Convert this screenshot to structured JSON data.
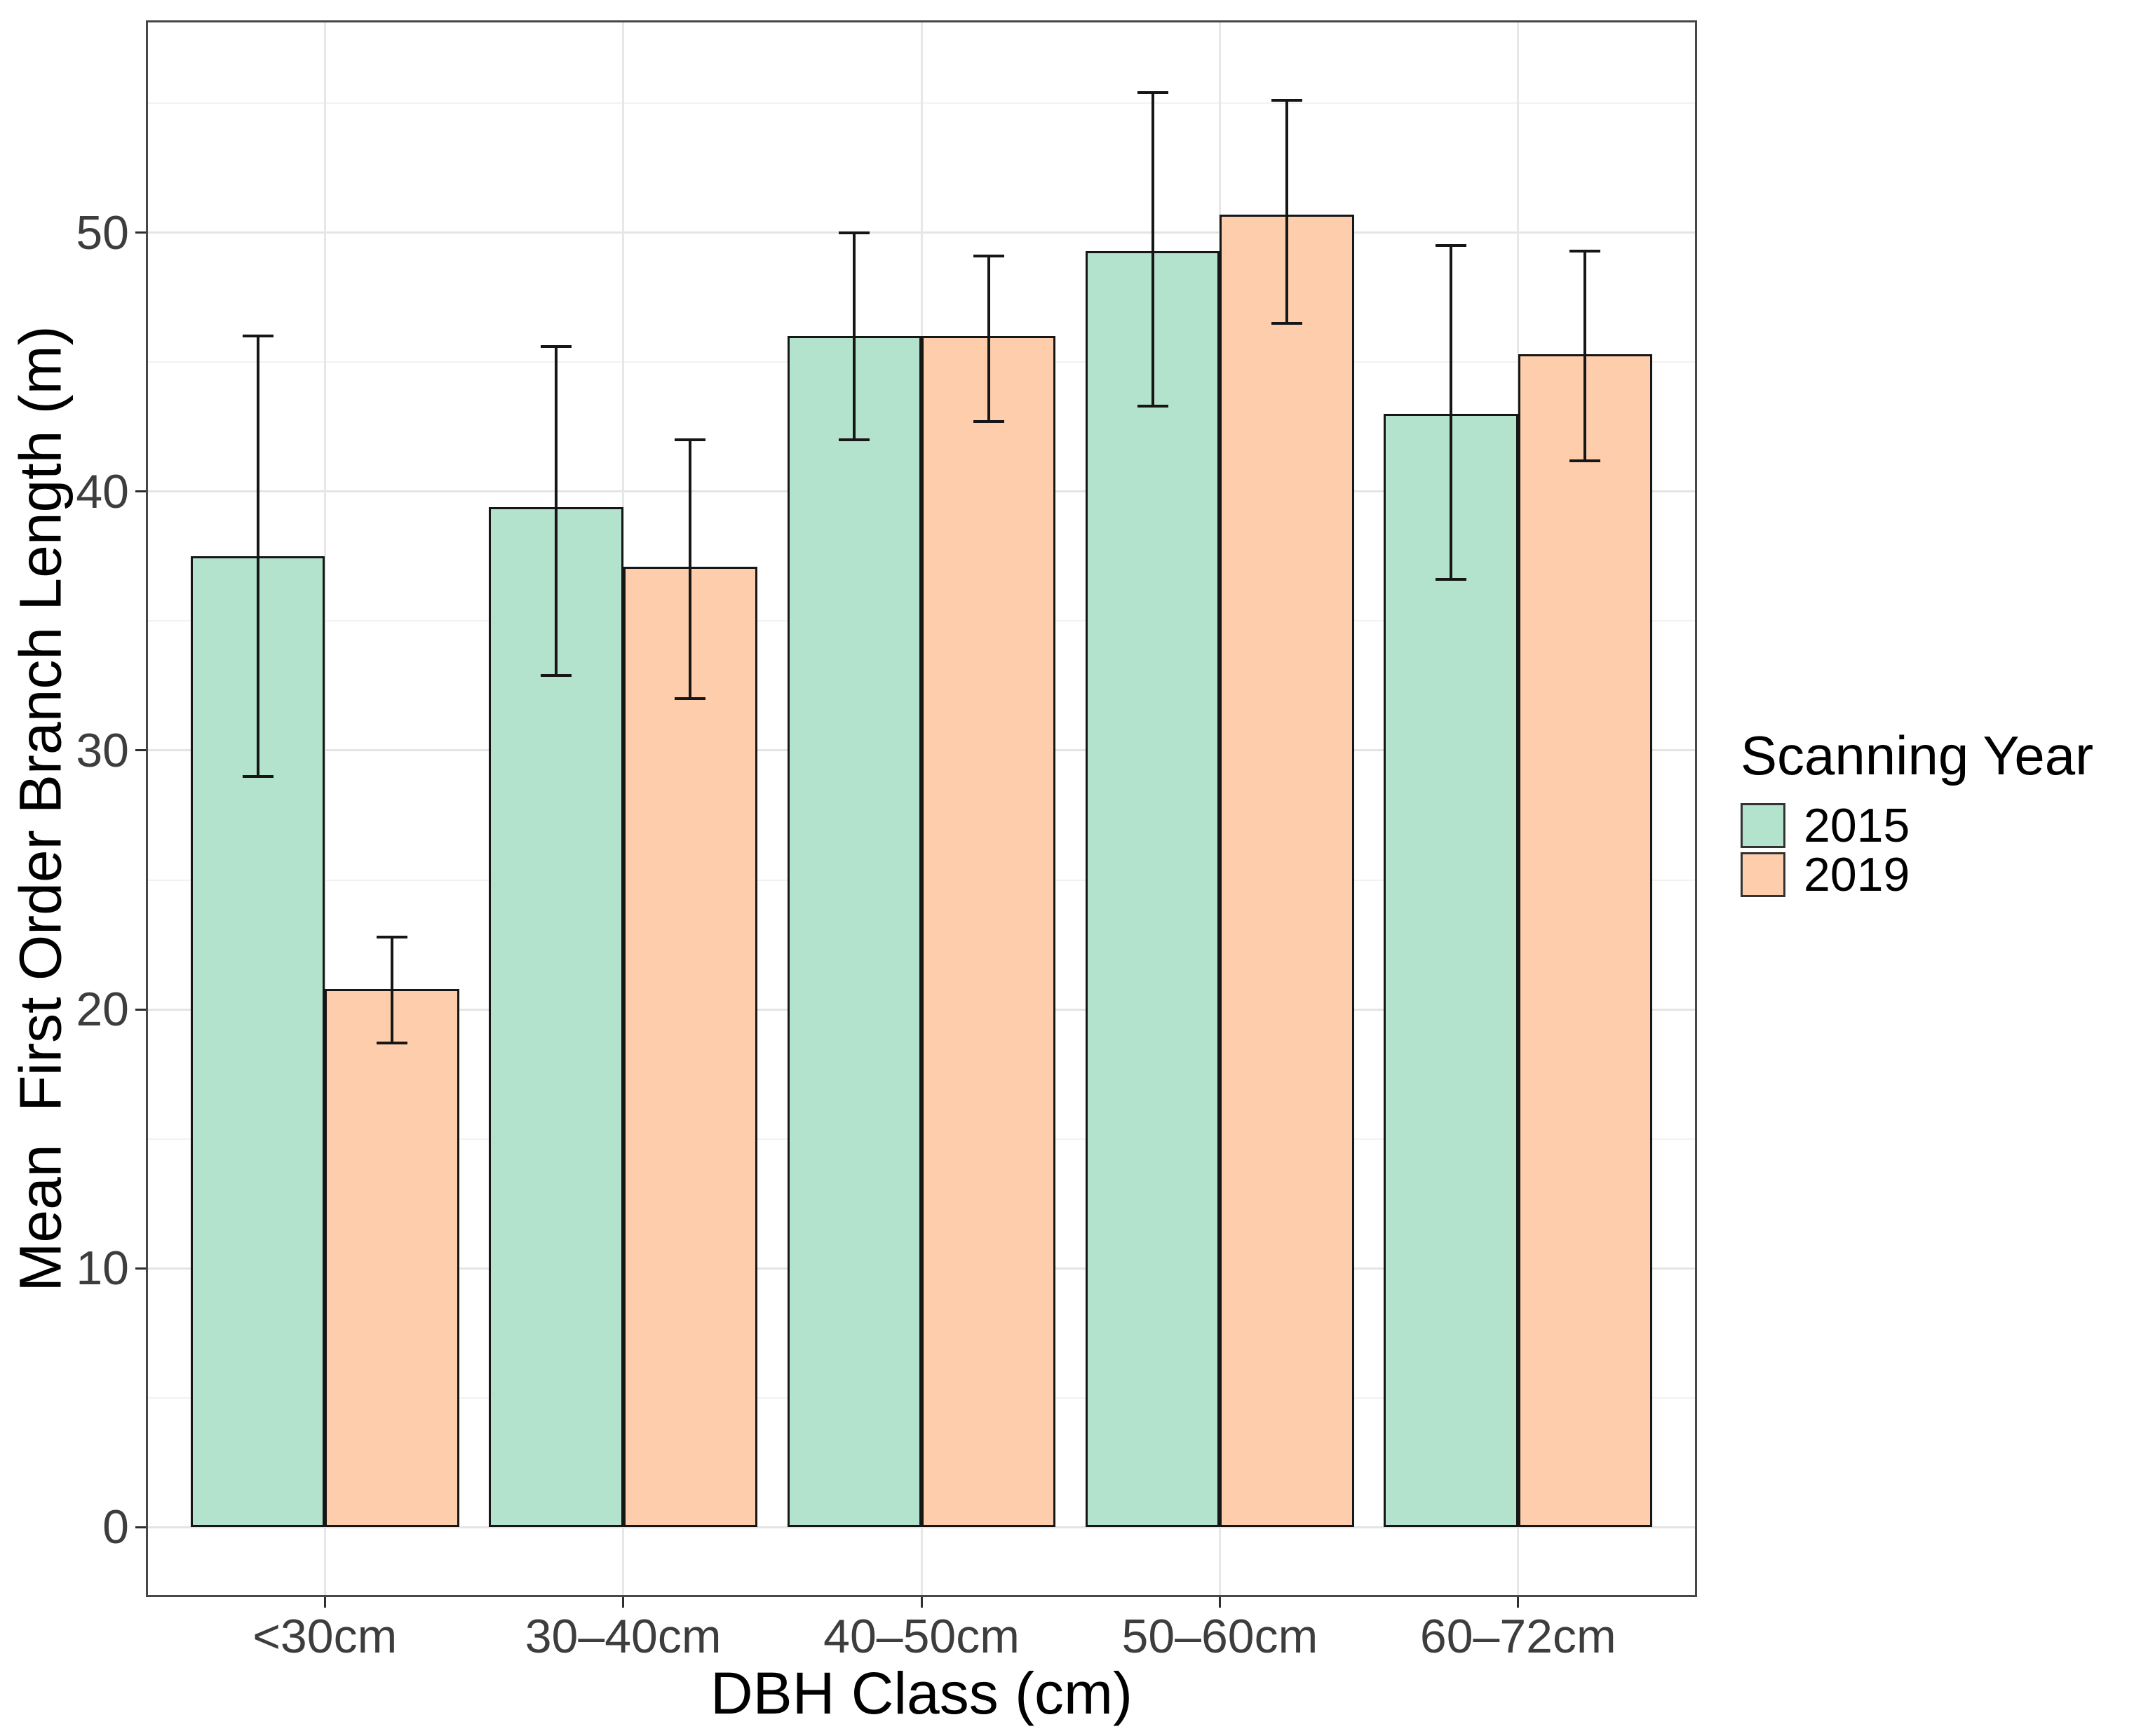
{
  "chart_data": {
    "type": "bar",
    "title": "",
    "xlabel": "DBH Class (cm)",
    "ylabel": "Mean  First Order Branch Length (m)",
    "categories": [
      "<30cm",
      "30–40cm",
      "40–50cm",
      "50–60cm",
      "60–72cm"
    ],
    "series": [
      {
        "name": "2015",
        "color": "#B3E2CD",
        "values": [
          37.5,
          39.4,
          46.0,
          49.3,
          43.0
        ],
        "error_low": [
          29.0,
          32.9,
          42.0,
          43.3,
          36.6
        ],
        "error_high": [
          46.0,
          45.6,
          50.0,
          55.4,
          49.5
        ]
      },
      {
        "name": "2019",
        "color": "#FDCDAC",
        "values": [
          20.8,
          37.1,
          46.0,
          50.7,
          45.3
        ],
        "error_low": [
          18.7,
          32.0,
          42.7,
          46.5,
          41.2
        ],
        "error_high": [
          22.8,
          42.0,
          49.1,
          55.1,
          49.3
        ]
      }
    ],
    "ylim": [
      -2.7,
      58.2
    ],
    "yticks": [
      0,
      10,
      20,
      30,
      40,
      50
    ],
    "yticks_minor": [
      5,
      15,
      25,
      35,
      45,
      55
    ],
    "grid": "horizontal major+minor, vertical major at category centers",
    "legend": {
      "title": "Scanning Year",
      "position": "right"
    },
    "bar_outline_color": "#161616",
    "errorbar_color": "#161616"
  }
}
